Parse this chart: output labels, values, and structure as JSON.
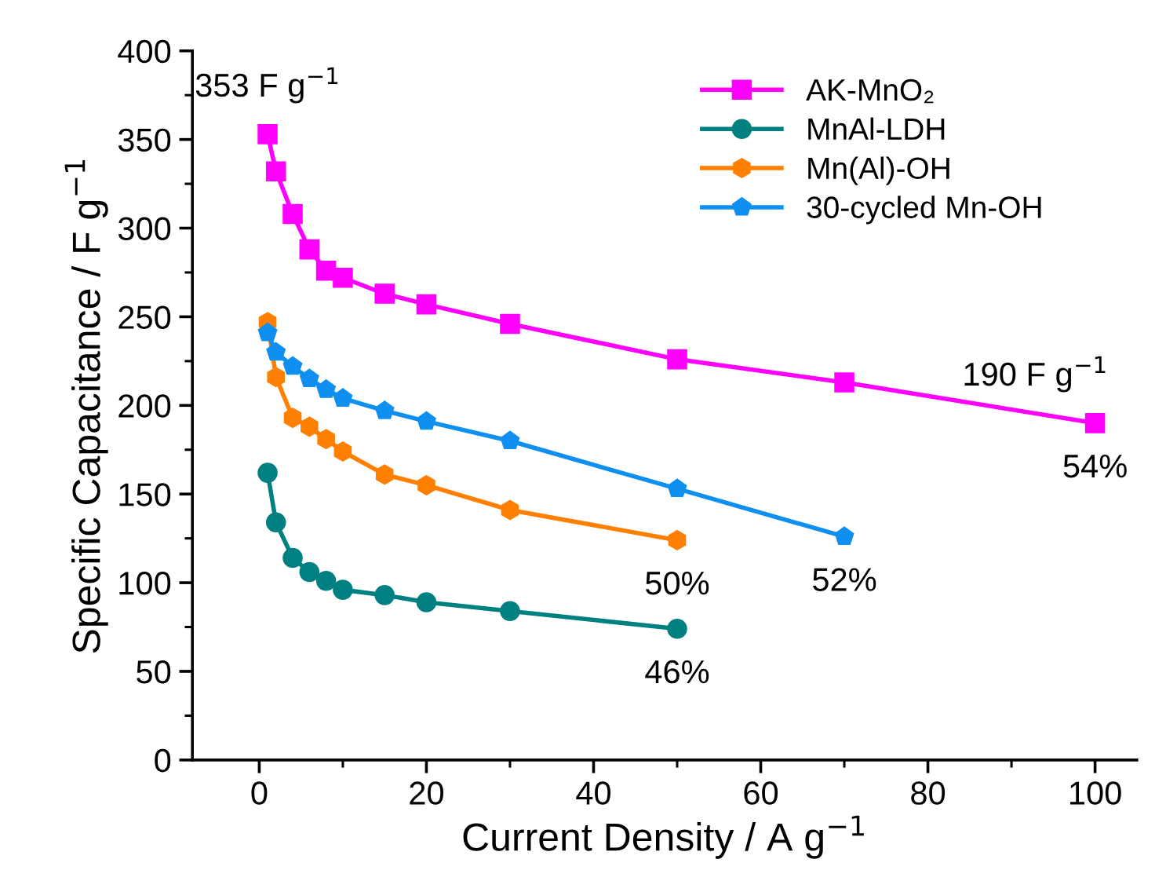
{
  "chart_data": {
    "type": "line",
    "xlabel": "Current Density / A g$^{−1}$",
    "ylabel": "Specific Capacitance / F g$^{−1}$",
    "xlim": [
      -8,
      105
    ],
    "xticks": [
      0,
      20,
      40,
      60,
      80,
      100
    ],
    "ylim": [
      0,
      400
    ],
    "yticks": [
      0,
      50,
      100,
      150,
      200,
      250,
      300,
      350,
      400
    ],
    "grid": false,
    "legend": "top right",
    "line_style": "solid",
    "series": [
      {
        "name": "AK-MnO₂",
        "color": "#ff00ff",
        "marker": "square",
        "x": [
          1,
          2,
          4,
          6,
          8,
          10,
          15,
          20,
          30,
          50,
          70,
          100
        ],
        "values": [
          353,
          332,
          308,
          288,
          276,
          272,
          263,
          257,
          246,
          226,
          213,
          190
        ]
      },
      {
        "name": "MnAl-LDH",
        "color": "#008080",
        "marker": "circle",
        "x": [
          1,
          2,
          4,
          6,
          8,
          10,
          15,
          20,
          30,
          50
        ],
        "values": [
          162,
          134,
          114,
          106,
          101,
          96,
          93,
          89,
          84,
          74
        ]
      },
      {
        "name": "Mn(Al)-OH",
        "color": "#ff8000",
        "marker": "circle",
        "x": [
          1,
          2,
          4,
          6,
          8,
          10,
          15,
          20,
          30,
          50
        ],
        "values": [
          247,
          216,
          193,
          188,
          181,
          174,
          161,
          155,
          141,
          124
        ]
      },
      {
        "name": "30-cycled Mn-OH",
        "color": "#0f8ff0",
        "marker": "diamond",
        "x": [
          1,
          2,
          4,
          6,
          8,
          10,
          15,
          20,
          30,
          50,
          70
        ],
        "values": [
          241,
          230,
          222,
          215,
          209,
          204,
          197,
          191,
          180,
          153,
          126
        ]
      }
    ],
    "annotations": [
      {
        "text": "353 F g$^{−1}$",
        "x": 1,
        "y": 353
      },
      {
        "text": "190 F g$^{−1}$",
        "x": 100,
        "y": 190
      },
      {
        "text": "54%",
        "x": 100,
        "y": 190
      },
      {
        "text": "50%",
        "x": 50,
        "y": 124
      },
      {
        "text": "52%",
        "x": 70,
        "y": 126
      },
      {
        "text": "46%",
        "x": 50,
        "y": 74
      }
    ]
  }
}
